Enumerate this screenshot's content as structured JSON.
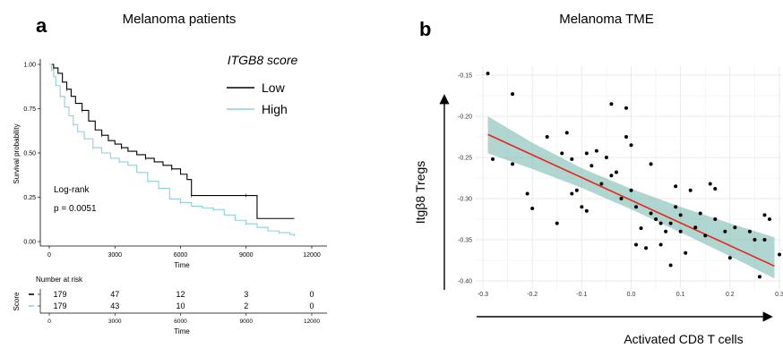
{
  "panels": {
    "a_letter": "a",
    "b_letter": "b"
  },
  "chart_data": [
    {
      "type": "line",
      "subtype": "kaplan-meier",
      "title": "Melanoma patients",
      "xlabel": "Time",
      "ylabel": "Survival probability",
      "xlim": [
        0,
        12000
      ],
      "ylim": [
        0,
        1
      ],
      "x_ticks": [
        "0",
        "3000",
        "6000",
        "9000",
        "12000"
      ],
      "y_ticks": [
        "0.00",
        "0.25",
        "0.50",
        "0.75",
        "1.00"
      ],
      "legend_title": "ITGB8 score",
      "legend_position": "top-right",
      "annotation_label": "Log-rank",
      "annotation_value": "p = 0.0051",
      "series": [
        {
          "name": "Low",
          "color": "#000000",
          "x": [
            0,
            200,
            400,
            600,
            800,
            1000,
            1200,
            1500,
            1800,
            2100,
            2400,
            2700,
            3000,
            3300,
            3600,
            4000,
            4400,
            4800,
            5200,
            5600,
            6000,
            6300,
            6500,
            7000,
            8000,
            9000,
            9500,
            11200
          ],
          "y": [
            1.0,
            0.98,
            0.95,
            0.9,
            0.86,
            0.82,
            0.78,
            0.74,
            0.68,
            0.63,
            0.6,
            0.57,
            0.55,
            0.53,
            0.51,
            0.49,
            0.47,
            0.45,
            0.43,
            0.41,
            0.38,
            0.35,
            0.26,
            0.26,
            0.26,
            0.26,
            0.13,
            0.13
          ]
        },
        {
          "name": "High",
          "color": "#8ecfdf",
          "x": [
            0,
            100,
            200,
            300,
            500,
            700,
            900,
            1100,
            1300,
            1600,
            2000,
            2400,
            2800,
            3200,
            3600,
            4000,
            4500,
            5000,
            5500,
            6000,
            6500,
            7000,
            7500,
            8000,
            8500,
            9000,
            9500,
            10000,
            10500,
            11000,
            11200
          ],
          "y": [
            1.0,
            0.97,
            0.93,
            0.88,
            0.82,
            0.76,
            0.71,
            0.66,
            0.62,
            0.58,
            0.53,
            0.5,
            0.47,
            0.45,
            0.43,
            0.39,
            0.34,
            0.3,
            0.24,
            0.22,
            0.2,
            0.19,
            0.18,
            0.15,
            0.12,
            0.1,
            0.08,
            0.06,
            0.05,
            0.04,
            0.03
          ]
        }
      ],
      "risk_table": {
        "title": "Number at risk",
        "row_axis_label": "Score",
        "xlabel": "Time",
        "times": [
          "0",
          "3000",
          "6000",
          "9000",
          "12000"
        ],
        "rows": [
          {
            "name": "Low",
            "color": "#000000",
            "counts": [
              "179",
              "47",
              "12",
              "3",
              "0"
            ]
          },
          {
            "name": "High",
            "color": "#8ecfdf",
            "counts": [
              "179",
              "43",
              "10",
              "2",
              "0"
            ]
          }
        ]
      }
    },
    {
      "type": "scatter",
      "title": "Melanoma TME",
      "xlabel": "Activated CD8 T cells",
      "ylabel": "Itgβ8 Tregs",
      "xlim": [
        -0.3,
        0.3
      ],
      "ylim": [
        -0.4,
        -0.14
      ],
      "x_ticks": [
        "-0.3",
        "-0.2",
        "-0.1",
        "0.0",
        "0.1",
        "0.2",
        "0.3"
      ],
      "y_ticks": [
        "-0.15",
        "-0.20",
        "-0.25",
        "-0.30",
        "-0.35",
        "-0.40"
      ],
      "grid": true,
      "point_color": "#000000",
      "fit_color": "#e8231c",
      "band_color": "#6fb5ac",
      "fit": {
        "x": [
          -0.29,
          0.29
        ],
        "y": [
          -0.222,
          -0.382
        ]
      },
      "band_upper": {
        "x": [
          -0.29,
          -0.2,
          -0.1,
          0.0,
          0.1,
          0.2,
          0.29
        ],
        "y": [
          -0.2,
          -0.232,
          -0.263,
          -0.288,
          -0.31,
          -0.33,
          -0.347
        ]
      },
      "band_lower": {
        "x": [
          -0.29,
          -0.2,
          -0.1,
          0.0,
          0.1,
          0.2,
          0.29
        ],
        "y": [
          -0.245,
          -0.264,
          -0.287,
          -0.313,
          -0.341,
          -0.37,
          -0.397
        ]
      },
      "points": [
        [
          -0.29,
          -0.148
        ],
        [
          -0.28,
          -0.252
        ],
        [
          -0.24,
          -0.173
        ],
        [
          -0.24,
          -0.258
        ],
        [
          -0.21,
          -0.294
        ],
        [
          -0.2,
          -0.312
        ],
        [
          -0.17,
          -0.225
        ],
        [
          -0.15,
          -0.33
        ],
        [
          -0.14,
          -0.245
        ],
        [
          -0.13,
          -0.22
        ],
        [
          -0.12,
          -0.294
        ],
        [
          -0.12,
          -0.252
        ],
        [
          -0.11,
          -0.29
        ],
        [
          -0.1,
          -0.31
        ],
        [
          -0.09,
          -0.245
        ],
        [
          -0.09,
          -0.315
        ],
        [
          -0.08,
          -0.26
        ],
        [
          -0.07,
          -0.242
        ],
        [
          -0.06,
          -0.282
        ],
        [
          -0.05,
          -0.25
        ],
        [
          -0.04,
          -0.185
        ],
        [
          -0.04,
          -0.272
        ],
        [
          -0.03,
          -0.268
        ],
        [
          -0.02,
          -0.3
        ],
        [
          -0.01,
          -0.19
        ],
        [
          -0.01,
          -0.225
        ],
        [
          0.0,
          -0.235
        ],
        [
          0.0,
          -0.29
        ],
        [
          0.01,
          -0.31
        ],
        [
          0.01,
          -0.356
        ],
        [
          0.02,
          -0.336
        ],
        [
          0.03,
          -0.36
        ],
        [
          0.04,
          -0.258
        ],
        [
          0.04,
          -0.318
        ],
        [
          0.05,
          -0.325
        ],
        [
          0.06,
          -0.33
        ],
        [
          0.06,
          -0.356
        ],
        [
          0.07,
          -0.34
        ],
        [
          0.08,
          -0.33
        ],
        [
          0.08,
          -0.381
        ],
        [
          0.09,
          -0.285
        ],
        [
          0.09,
          -0.31
        ],
        [
          0.1,
          -0.32
        ],
        [
          0.1,
          -0.34
        ],
        [
          0.11,
          -0.366
        ],
        [
          0.12,
          -0.29
        ],
        [
          0.13,
          -0.335
        ],
        [
          0.14,
          -0.318
        ],
        [
          0.15,
          -0.345
        ],
        [
          0.16,
          -0.282
        ],
        [
          0.17,
          -0.288
        ],
        [
          0.17,
          -0.325
        ],
        [
          0.19,
          -0.34
        ],
        [
          0.2,
          -0.372
        ],
        [
          0.21,
          -0.335
        ],
        [
          0.24,
          -0.34
        ],
        [
          0.25,
          -0.35
        ],
        [
          0.26,
          -0.395
        ],
        [
          0.27,
          -0.35
        ],
        [
          0.27,
          -0.32
        ],
        [
          0.28,
          -0.325
        ],
        [
          0.3,
          -0.368
        ]
      ]
    }
  ]
}
